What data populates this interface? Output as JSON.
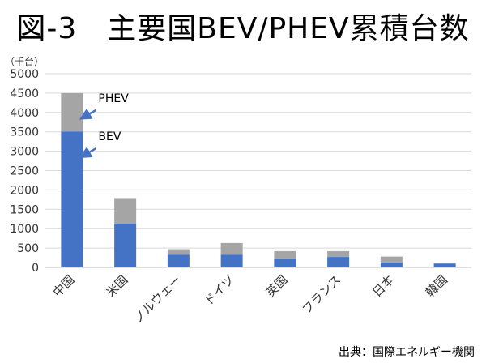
{
  "title": "図-3　主要国BEV/PHEV累積台数",
  "source": "出典：国際エネルギー機関",
  "chart_data": {
    "type": "bar",
    "stacked": true,
    "unit_label": "（千台）",
    "categories": [
      "中国",
      "米国",
      "ノルウェー",
      "ドイツ",
      "英国",
      "フランス",
      "日本",
      "韓国"
    ],
    "series": [
      {
        "name": "BEV",
        "values": [
          3510,
          1130,
          330,
          330,
          210,
          270,
          130,
          100
        ],
        "color": "#4472C4"
      },
      {
        "name": "PHEV",
        "values": [
          990,
          660,
          140,
          300,
          210,
          150,
          150,
          20
        ],
        "color": "#A5A5A5"
      }
    ],
    "ylim": [
      0,
      5000
    ],
    "yticks": [
      "0",
      "500",
      "1000",
      "1500",
      "2000",
      "2500",
      "3000",
      "3500",
      "4000",
      "4500",
      "5000"
    ],
    "grid": true,
    "annotations": [
      {
        "label": "PHEV",
        "target_series": "PHEV",
        "category": "中国"
      },
      {
        "label": "BEV",
        "target_series": "BEV",
        "category": "中国"
      }
    ]
  }
}
